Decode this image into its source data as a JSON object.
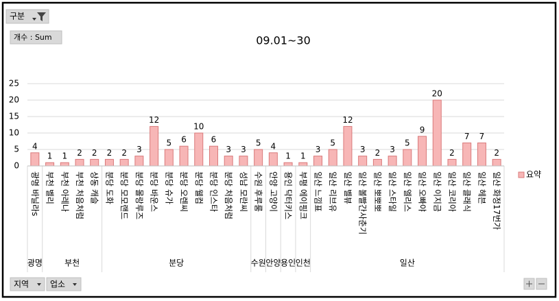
{
  "controls": {
    "filter": "구분",
    "measure": "개수 : Sum",
    "row_fields": [
      "지역",
      "업소"
    ]
  },
  "chart_data": {
    "type": "bar",
    "title": "09.01~30",
    "series_name": "요약",
    "color": "#f7b6b6",
    "edge": "#d9797a",
    "ylim": [
      0,
      25
    ],
    "yticks": [
      0,
      5,
      10,
      15,
      20,
      25
    ],
    "grid": true,
    "legend": "right",
    "groups": [
      {
        "name": "광명",
        "categories": [
          "광명 바닐라s"
        ],
        "values": [
          4
        ]
      },
      {
        "name": "부천",
        "categories": [
          "부천 벨리",
          "부천 아레나",
          "부천 처음처럼",
          "상동 캐슬"
        ],
        "values": [
          1,
          1,
          2,
          2
        ]
      },
      {
        "name": "분당",
        "categories": [
          "분당 도화",
          "분당 모모랜드",
          "분당 몰랑루즈",
          "분당 바운스",
          "분당 슈가",
          "분당 오렌씨",
          "분당 웰컴",
          "분당 인스타",
          "분당 처음처럼",
          "성남 모란씨"
        ],
        "values": [
          2,
          2,
          3,
          12,
          5,
          6,
          10,
          6,
          3,
          3
        ]
      },
      {
        "name": "수원",
        "categories": [
          "수원 후루룸"
        ],
        "values": [
          5
        ]
      },
      {
        "name": "안양",
        "categories": [
          "안양 고양이"
        ],
        "values": [
          4
        ]
      },
      {
        "name": "용인",
        "categories": [
          "용인 닥터키스"
        ],
        "values": [
          1
        ]
      },
      {
        "name": "인천",
        "categories": [
          "부평 에이핑크"
        ],
        "values": [
          1
        ]
      },
      {
        "name": "일산",
        "categories": [
          "일산 느낌표",
          "일산 리브유",
          "일산 벨뷰",
          "일산 볼빨간사춘기",
          "일산 뽀뽀뽀",
          "일산 스타일",
          "일산 엘리스",
          "일산 오빠야",
          "일산 이지금",
          "일산 코리아",
          "일산 클래식",
          "일산 헤븐",
          "일산 화정17번가"
        ],
        "values": [
          3,
          5,
          12,
          3,
          2,
          3,
          5,
          9,
          20,
          2,
          7,
          7,
          2
        ]
      }
    ]
  }
}
